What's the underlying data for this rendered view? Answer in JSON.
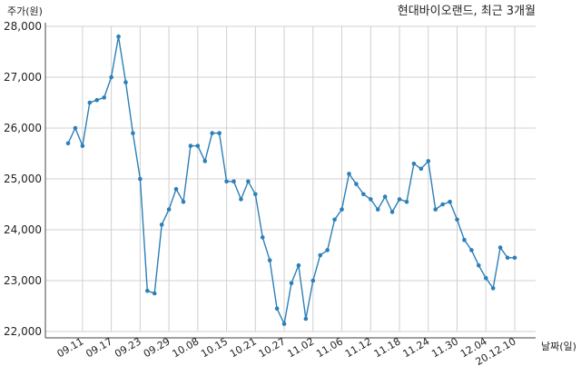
{
  "chart_data": {
    "type": "line",
    "title": "현대바이오랜드, 최근 3개월",
    "ylabel": "주가(원)",
    "xlabel": "날짜(일)",
    "ylim": [
      22000,
      28000
    ],
    "yticks": [
      22000,
      23000,
      24000,
      25000,
      26000,
      27000,
      28000
    ],
    "ytick_labels": [
      "22,000",
      "23,000",
      "24,000",
      "25,000",
      "26,000",
      "27,000",
      "28,000"
    ],
    "xtick_labels": [
      "09.11",
      "09.17",
      "09.23",
      "09.29",
      "10.08",
      "10.15",
      "10.21",
      "10.27",
      "11.02",
      "11.06",
      "11.12",
      "11.18",
      "11.24",
      "11.30",
      "12.04",
      "20.12.10"
    ],
    "xtick_indices": [
      2,
      6,
      10,
      14,
      18,
      22,
      26,
      30,
      34,
      38,
      42,
      46,
      50,
      54,
      58,
      62
    ],
    "grid": true,
    "line_color": "#2c7fb8",
    "series": [
      {
        "values": [
          25700,
          26000,
          25650,
          26500,
          26550,
          26600,
          27000,
          27800,
          26900,
          25900,
          25000,
          22800,
          22750,
          24100,
          24400,
          24800,
          24550,
          25650,
          25650,
          25350,
          25900,
          25900,
          24950,
          24950,
          24600,
          24950,
          24700,
          23850,
          23400,
          22450,
          22150,
          22950,
          23300,
          22250,
          23000,
          23500,
          23600,
          24200,
          24400,
          25100,
          24900,
          24700,
          24600,
          24400,
          24650,
          24350,
          24600,
          24550,
          25300,
          25200,
          25350,
          24400,
          24500,
          24550,
          24200,
          23800,
          23600,
          23300,
          23050,
          22850,
          23650,
          23450,
          23450
        ]
      }
    ]
  }
}
